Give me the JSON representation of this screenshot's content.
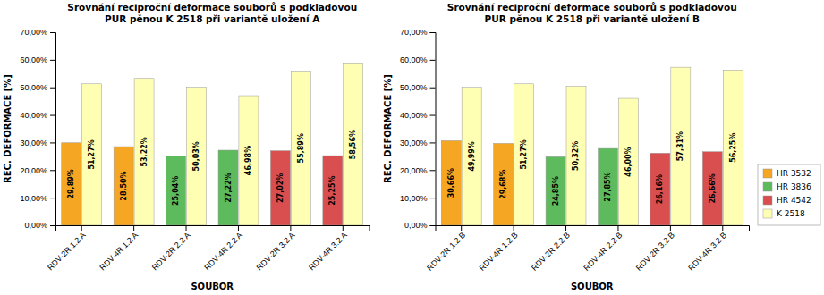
{
  "chart_data": [
    {
      "type": "bar",
      "title": "Srovnání reciproční deformace souborů s podkladovou\nPUR pěnou K 2518 při variantě uložení A",
      "categories": [
        "RDV-2R 1.2 A",
        "RDV-4R 1.2 A",
        "RDV-2R 2.2 A",
        "RDV-4R 2.2 A",
        "RDV-2R 3.2 A",
        "RDV-4R 3.2 A"
      ],
      "series": [
        {
          "colors": [
            "#F5A623",
            "#F5A623",
            "#5DBB5D",
            "#5DBB5D",
            "#D94F4F",
            "#D94F4F"
          ],
          "values": [
            29.89,
            28.5,
            25.04,
            27.22,
            27.02,
            25.25
          ],
          "value_labels": [
            "29,89%",
            "28,50%",
            "25,04%",
            "27,22%",
            "27,02%",
            "25,25%"
          ]
        },
        {
          "color": "#FFFFB3",
          "values": [
            51.27,
            53.22,
            50.03,
            46.98,
            55.89,
            58.56
          ],
          "value_labels": [
            "51,27%",
            "53,22%",
            "50,03%",
            "46,98%",
            "55,89%",
            "58,56%"
          ]
        }
      ],
      "xlabel": "SOUBOR",
      "ylabel": "REC. DEFORMACE [%]",
      "ylim": [
        0,
        70
      ],
      "yticks": [
        {
          "value": 0,
          "label": "0,00%"
        },
        {
          "value": 10,
          "label": "10,00%"
        },
        {
          "value": 20,
          "label": "20,00%"
        },
        {
          "value": 30,
          "label": "30,00%"
        },
        {
          "value": 40,
          "label": "40,00%"
        },
        {
          "value": 50,
          "label": "50,00%"
        },
        {
          "value": 60,
          "label": "60,00%"
        },
        {
          "value": 70,
          "label": "70,00%"
        }
      ],
      "data_labels": true,
      "grid": false
    },
    {
      "type": "bar",
      "title": "Srovnání reciproční deformace souborů s podkladovou\nPUR pěnou K 2518 při variantě uložení B",
      "categories": [
        "RDV-2R 1.2 B",
        "RDV-4R 1.2 B",
        "RDV-2R 2.2 B",
        "RDV-4R 2.2 B",
        "RDV-2R 3.2 B",
        "RDV-4R 3.2 B"
      ],
      "series": [
        {
          "colors": [
            "#F5A623",
            "#F5A623",
            "#5DBB5D",
            "#5DBB5D",
            "#D94F4F",
            "#D94F4F"
          ],
          "values": [
            30.66,
            29.68,
            24.85,
            27.85,
            26.16,
            26.66
          ],
          "value_labels": [
            "30,66%",
            "29,68%",
            "24,85%",
            "27,85%",
            "26,16%",
            "26,66%"
          ]
        },
        {
          "color": "#FFFFB3",
          "values": [
            49.99,
            51.27,
            50.32,
            46.0,
            57.31,
            56.25
          ],
          "value_labels": [
            "49,99%",
            "51,27%",
            "50,32%",
            "46,00%",
            "57,31%",
            "56,25%"
          ]
        }
      ],
      "xlabel": "SOUBOR",
      "ylabel": "REC. DEFORMACE [%]",
      "ylim": [
        0,
        70
      ],
      "yticks": [
        {
          "value": 0,
          "label": "0,00%"
        },
        {
          "value": 10,
          "label": "10,00%"
        },
        {
          "value": 20,
          "label": "20,00%"
        },
        {
          "value": 30,
          "label": "30,00%"
        },
        {
          "value": 40,
          "label": "40,00%"
        },
        {
          "value": 50,
          "label": "50,00%"
        },
        {
          "value": 60,
          "label": "60,00%"
        },
        {
          "value": 70,
          "label": "70,00%"
        }
      ],
      "data_labels": true,
      "grid": false,
      "legend": "lower right",
      "legend_items": [
        {
          "name": "HR 3532",
          "color": "#F5A623"
        },
        {
          "name": "HR 3836",
          "color": "#5DBB5D"
        },
        {
          "name": "HR 4542",
          "color": "#D94F4F"
        },
        {
          "name": "K 2518",
          "color": "#FFFFB3"
        }
      ]
    }
  ]
}
